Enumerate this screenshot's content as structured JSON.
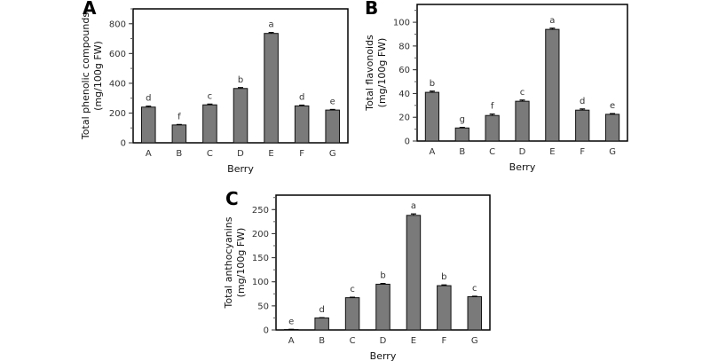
{
  "chart_data": [
    {
      "type": "bar",
      "panel_label": "A",
      "categories": [
        "A",
        "B",
        "C",
        "D",
        "E",
        "F",
        "G"
      ],
      "values": [
        240,
        120,
        255,
        365,
        735,
        248,
        220
      ],
      "errors": [
        6,
        3,
        5,
        6,
        6,
        5,
        4
      ],
      "significance": [
        "d",
        "f",
        "c",
        "b",
        "a",
        "d",
        "e"
      ],
      "xlabel": "Berry",
      "ylabel": [
        "Total phenolic compounds",
        "(mg/100g FW)"
      ],
      "ylim": [
        0,
        900
      ],
      "yticks": [
        0,
        200,
        400,
        600,
        800
      ],
      "minor_step": 100,
      "bar_color": "#7a7a7a"
    },
    {
      "type": "bar",
      "panel_label": "B",
      "categories": [
        "A",
        "B",
        "C",
        "D",
        "E",
        "F",
        "G"
      ],
      "values": [
        41,
        11,
        21.5,
        33.5,
        94,
        26,
        22.5
      ],
      "errors": [
        1,
        0.5,
        1.2,
        1,
        1,
        1,
        0.6
      ],
      "significance": [
        "b",
        "g",
        "f",
        "c",
        "a",
        "d",
        "e"
      ],
      "xlabel": "Berry",
      "ylabel": [
        "Total flavonoids",
        "(mg/100g FW)"
      ],
      "ylim": [
        0,
        115
      ],
      "yticks": [
        0,
        20,
        40,
        60,
        80,
        100
      ],
      "minor_step": 10,
      "bar_color": "#7a7a7a"
    },
    {
      "type": "bar",
      "panel_label": "C",
      "categories": [
        "A",
        "B",
        "C",
        "D",
        "E",
        "F",
        "G"
      ],
      "values": [
        1,
        25,
        67,
        95,
        238,
        92,
        69
      ],
      "errors": [
        0.3,
        0.5,
        1,
        1.5,
        3,
        1.5,
        1
      ],
      "significance": [
        "e",
        "d",
        "c",
        "b",
        "a",
        "b",
        "c"
      ],
      "xlabel": "Berry",
      "ylabel": [
        "Total anthocyanins",
        "(mg/100g FW)"
      ],
      "ylim": [
        0,
        280
      ],
      "yticks": [
        0,
        50,
        100,
        150,
        200,
        250
      ],
      "minor_step": 25,
      "bar_color": "#7a7a7a"
    }
  ]
}
